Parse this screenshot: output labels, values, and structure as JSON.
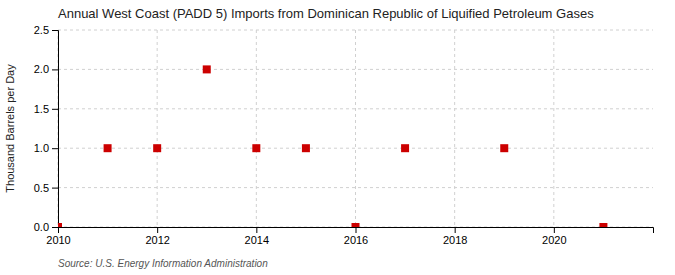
{
  "chart_data": {
    "type": "scatter",
    "title": "Annual West Coast (PADD 5) Imports from Dominican Republic of Liquified Petroleum Gases",
    "ylabel": "Thousand Barrels per Day",
    "annotation": "Source: U.S. Energy Information Administration",
    "x": [
      2010,
      2011,
      2012,
      2013,
      2014,
      2015,
      2016,
      2017,
      2019,
      2021
    ],
    "values": [
      0,
      1.0,
      1.0,
      2.0,
      1.0,
      1.0,
      0,
      1.0,
      1.0,
      0
    ],
    "color": "#cc0000",
    "marker": "square",
    "xlim": [
      2010,
      2022
    ],
    "ylim": [
      0,
      2.5
    ],
    "xticks": [
      2010,
      2012,
      2014,
      2016,
      2018,
      2020
    ],
    "yticks": [
      {
        "value": 0,
        "label": "0.0"
      },
      0.5,
      {
        "value": 1,
        "label": "1.0"
      },
      1.5,
      {
        "value": 2,
        "label": "2.0"
      },
      2.5
    ],
    "grid": true
  }
}
